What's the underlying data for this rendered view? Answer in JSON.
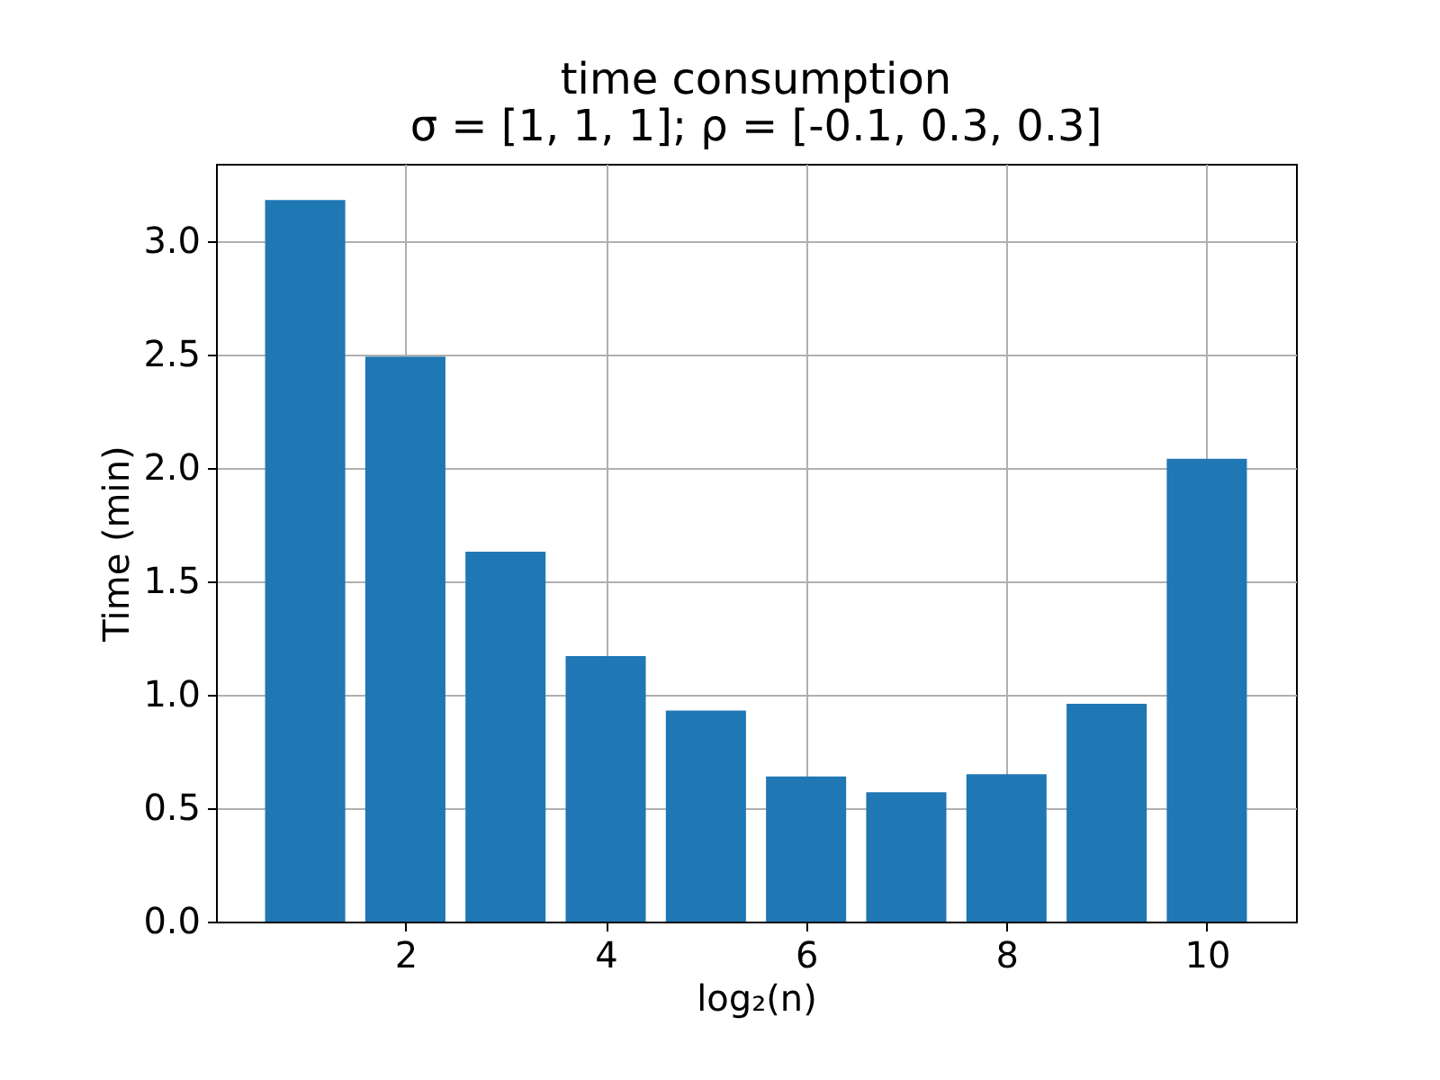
{
  "chart_data": {
    "type": "bar",
    "title": "time consumption",
    "subtitle": "σ = [1, 1, 1];  ρ = [-0.1, 0.3, 0.3]",
    "xlabel": "log₂(n)",
    "ylabel": "Time (min)",
    "x": [
      1,
      2,
      3,
      4,
      5,
      6,
      7,
      8,
      9,
      10
    ],
    "values": [
      3.18,
      2.49,
      1.63,
      1.17,
      0.93,
      0.64,
      0.57,
      0.65,
      0.96,
      2.04
    ],
    "color": "#1f77b4",
    "xlim": [
      0.11,
      10.89
    ],
    "xticks": [
      2,
      4,
      6,
      8,
      10
    ],
    "ylim": [
      0,
      3.34
    ],
    "yticks": [
      {
        "value": 0,
        "label": "0.0"
      },
      0.5,
      {
        "value": 1,
        "label": "1.0"
      },
      1.5,
      {
        "value": 2,
        "label": "2.0"
      },
      2.5,
      {
        "value": 3,
        "label": "3.0"
      }
    ],
    "grid": true
  }
}
